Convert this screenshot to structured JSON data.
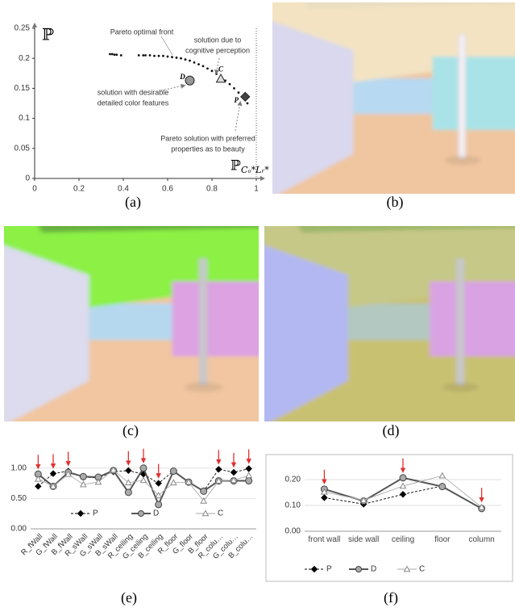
{
  "chart_data": [
    {
      "type": "scatter",
      "y_label": "ℙ",
      "x_label": "ℙ",
      "x_label_sub": "Cₒ*Lᵣ*",
      "xlim": [
        0,
        1
      ],
      "ylim": [
        0,
        0.25
      ],
      "xticks": [
        0,
        0.2,
        0.4,
        0.6,
        0.8,
        1
      ],
      "yticks": [
        0,
        0.05,
        0.1,
        0.15,
        0.2,
        0.25
      ],
      "color": "#111111",
      "x": [
        0.34,
        0.35,
        0.36,
        0.37,
        0.39,
        0.47,
        0.49,
        0.5,
        0.52,
        0.54,
        0.56,
        0.58,
        0.6,
        0.62,
        0.64,
        0.66,
        0.68,
        0.7,
        0.72,
        0.74,
        0.76,
        0.78,
        0.8,
        0.82,
        0.84,
        0.86,
        0.88,
        0.9,
        0.92,
        0.94,
        0.96
      ],
      "y": [
        0.207,
        0.207,
        0.206,
        0.206,
        0.205,
        0.205,
        0.205,
        0.205,
        0.205,
        0.204,
        0.204,
        0.204,
        0.203,
        0.202,
        0.201,
        0.2,
        0.198,
        0.196,
        0.193,
        0.19,
        0.187,
        0.183,
        0.179,
        0.174,
        0.169,
        0.163,
        0.157,
        0.15,
        0.143,
        0.135,
        0.125
      ],
      "front_annotation": "Pareto optimal front",
      "solutions": [
        {
          "label": "D",
          "x": 0.7,
          "y": 0.163,
          "color": "#999999",
          "annotation": [
            "solution with desirable",
            "detailed color features"
          ]
        },
        {
          "label": "C",
          "x": 0.84,
          "y": 0.166,
          "color": "#dddddd",
          "annotation": [
            "solution due to",
            "cognitive perception"
          ]
        },
        {
          "label": "P",
          "x": 0.95,
          "y": 0.136,
          "color": "#444444",
          "annotation": [
            "Pareto solution with preferred",
            "properties as to beauty"
          ]
        }
      ]
    },
    {
      "type": "line",
      "categories": [
        "R_fWall",
        "G_fWall",
        "B_fWall",
        "R_sWall",
        "G_sWall",
        "B_sWall",
        "R_ceiling",
        "G_ceiling",
        "B_ceiling",
        "R_floor",
        "G_floor",
        "B_floor",
        "R_colu…",
        "G_colu…",
        "B_colu…"
      ],
      "ylim": [
        0,
        1.05
      ],
      "yticks": [
        {
          "value": 0,
          "label": "0.00"
        },
        {
          "value": 0.5,
          "label": "0.50"
        },
        {
          "value": 1,
          "label": "1.00"
        }
      ],
      "grid": true,
      "series": [
        {
          "name": "P",
          "color": "#000000",
          "values": [
            0.7,
            0.91,
            0.95,
            0.85,
            0.84,
            0.94,
            0.96,
            0.9,
            0.75,
            0.95,
            0.77,
            0.62,
            0.98,
            0.93,
            0.99
          ]
        },
        {
          "name": "D",
          "color": "#555555",
          "values": [
            0.9,
            0.7,
            0.93,
            0.86,
            0.85,
            0.96,
            0.6,
            1.0,
            0.4,
            0.95,
            0.77,
            0.62,
            0.79,
            0.79,
            0.79
          ]
        },
        {
          "name": "C",
          "color": "#aaaaaa",
          "values": [
            0.82,
            0.7,
            0.9,
            0.73,
            0.77,
            0.97,
            0.76,
            0.8,
            0.55,
            0.76,
            0.77,
            0.46,
            0.79,
            0.8,
            0.88
          ]
        }
      ]
    },
    {
      "type": "line",
      "categories": [
        "front wall",
        "side wall",
        "ceiling",
        "floor",
        "column"
      ],
      "ylim": [
        0,
        0.25
      ],
      "yticks": [
        {
          "value": 0,
          "label": "0.00"
        },
        {
          "value": 0.1,
          "label": "0.10"
        },
        {
          "value": 0.2,
          "label": "0.20"
        }
      ],
      "grid": true,
      "series": [
        {
          "name": "P",
          "color": "#000000",
          "values": [
            0.13,
            0.105,
            0.143,
            0.175,
            0.087
          ]
        },
        {
          "name": "D",
          "color": "#555555",
          "values": [
            0.163,
            0.117,
            0.207,
            0.173,
            0.088
          ]
        },
        {
          "name": "C",
          "color": "#aaaaaa",
          "values": [
            0.152,
            0.12,
            0.175,
            0.215,
            0.093
          ]
        }
      ]
    }
  ],
  "captions": [
    "(a)",
    "(b)",
    "(c)",
    "(d)",
    "(e)",
    "(f)"
  ]
}
